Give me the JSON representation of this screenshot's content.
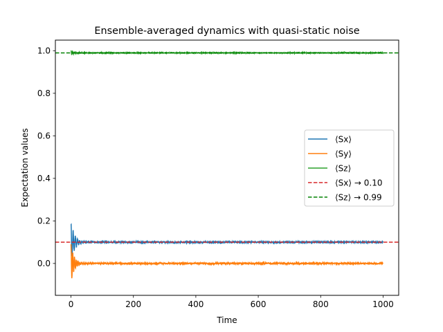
{
  "chart_data": {
    "type": "line",
    "title": "Ensemble-averaged dynamics with quasi-static noise",
    "xlabel": "Time",
    "ylabel": "Expectation values",
    "xlim": [
      -50,
      1050
    ],
    "ylim": [
      -0.15,
      1.05
    ],
    "xticks": [
      0,
      200,
      400,
      600,
      800,
      1000
    ],
    "yticks": [
      0.0,
      0.2,
      0.4,
      0.6,
      0.8,
      1.0
    ],
    "xtick_labels": [
      "0",
      "200",
      "400",
      "600",
      "800",
      "1000"
    ],
    "ytick_labels": [
      "0.0",
      "0.2",
      "0.4",
      "0.6",
      "0.8",
      "1.0"
    ],
    "grid": false,
    "legend_position": "center-right",
    "series": [
      {
        "name": "⟨Sx⟩",
        "color": "#1f77b4",
        "style": "solid",
        "x_range": [
          0,
          1000
        ],
        "steady_value": 0.1,
        "initial_value": 0.19,
        "transient_min": 0.09,
        "transient_decay_time": 12,
        "noise_amplitude": 0.003
      },
      {
        "name": "⟨Sy⟩",
        "color": "#ff7f0e",
        "style": "solid",
        "x_range": [
          0,
          1000
        ],
        "steady_value": 0.0,
        "initial_value": 0.0,
        "transient_min": -0.1,
        "transient_max": 0.09,
        "transient_decay_time": 10,
        "noise_amplitude": 0.003
      },
      {
        "name": "⟨Sz⟩",
        "color": "#2ca02c",
        "style": "solid",
        "x_range": [
          0,
          1000
        ],
        "steady_value": 0.99,
        "initial_value": 1.0,
        "transient_min": 0.98,
        "transient_decay_time": 10,
        "noise_amplitude": 0.0015
      }
    ],
    "reference_lines": [
      {
        "name": "⟨Sx⟩ → 0.10",
        "value": 0.1,
        "color": "#d62728",
        "style": "dashed"
      },
      {
        "name": "⟨Sz⟩ → 0.99",
        "value": 0.99,
        "color": "#008000",
        "style": "dashed"
      }
    ]
  }
}
